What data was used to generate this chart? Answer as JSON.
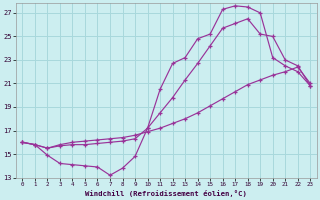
{
  "xlabel": "Windchill (Refroidissement éolien,°C)",
  "bg_color": "#cceef0",
  "grid_color": "#a8d8dc",
  "line_color": "#993399",
  "xlim": [
    -0.5,
    23.5
  ],
  "ylim": [
    13,
    27.8
  ],
  "xticks": [
    0,
    1,
    2,
    3,
    4,
    5,
    6,
    7,
    8,
    9,
    10,
    11,
    12,
    13,
    14,
    15,
    16,
    17,
    18,
    19,
    20,
    21,
    22,
    23
  ],
  "yticks": [
    13,
    15,
    17,
    19,
    21,
    23,
    25,
    27
  ],
  "curve1_x": [
    0,
    1,
    2,
    3,
    4,
    5,
    6,
    7,
    8,
    9,
    10,
    11,
    12,
    13,
    14,
    15,
    16,
    17,
    18,
    19,
    20,
    21,
    22,
    23
  ],
  "curve1_y": [
    16.0,
    15.8,
    14.9,
    14.2,
    14.1,
    14.0,
    13.9,
    13.2,
    13.8,
    14.8,
    17.2,
    20.5,
    22.7,
    23.2,
    24.8,
    25.2,
    27.3,
    27.6,
    27.5,
    27.0,
    23.2,
    22.5,
    22.0,
    20.8
  ],
  "curve2_x": [
    0,
    1,
    2,
    3,
    4,
    5,
    6,
    7,
    8,
    9,
    10,
    11,
    12,
    13,
    14,
    15,
    16,
    17,
    18,
    19,
    20,
    21,
    22,
    23
  ],
  "curve2_y": [
    16.0,
    15.8,
    15.5,
    15.7,
    15.8,
    15.8,
    15.9,
    16.0,
    16.1,
    16.3,
    17.2,
    18.5,
    19.8,
    21.3,
    22.7,
    24.2,
    25.7,
    26.1,
    26.5,
    25.2,
    25.0,
    23.0,
    22.5,
    20.8
  ],
  "curve3_x": [
    0,
    1,
    2,
    3,
    4,
    5,
    6,
    7,
    8,
    9,
    10,
    11,
    12,
    13,
    14,
    15,
    16,
    17,
    18,
    19,
    20,
    21,
    22,
    23
  ],
  "curve3_y": [
    16.0,
    15.8,
    15.5,
    15.8,
    16.0,
    16.1,
    16.2,
    16.3,
    16.4,
    16.6,
    16.9,
    17.2,
    17.6,
    18.0,
    18.5,
    19.1,
    19.7,
    20.3,
    20.9,
    21.3,
    21.7,
    22.0,
    22.4,
    21.0
  ]
}
